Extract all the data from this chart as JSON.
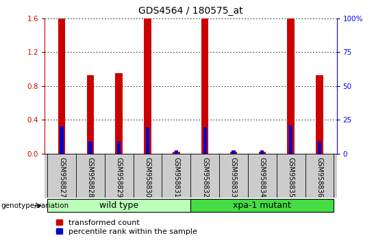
{
  "title": "GDS4564 / 180575_at",
  "samples": [
    "GSM958827",
    "GSM958828",
    "GSM958829",
    "GSM958830",
    "GSM958831",
    "GSM958832",
    "GSM958833",
    "GSM958834",
    "GSM958835",
    "GSM958836"
  ],
  "transformed_count": [
    1.6,
    0.93,
    0.95,
    1.6,
    0.02,
    1.6,
    0.02,
    0.02,
    1.6,
    0.93
  ],
  "percentile_rank_left": [
    0.32,
    0.14,
    0.14,
    0.31,
    0.04,
    0.31,
    0.04,
    0.04,
    0.34,
    0.14
  ],
  "groups": [
    {
      "label": "wild type",
      "start": 0,
      "end": 5,
      "color": "#bbffbb"
    },
    {
      "label": "xpa-1 mutant",
      "start": 5,
      "end": 10,
      "color": "#44dd44"
    }
  ],
  "ylim_left": [
    0,
    1.6
  ],
  "ylim_right": [
    0,
    100
  ],
  "yticks_left": [
    0,
    0.4,
    0.8,
    1.2,
    1.6
  ],
  "yticks_right": [
    0,
    25,
    50,
    75,
    100
  ],
  "bar_color_red": "#cc0000",
  "bar_color_blue": "#0000cc",
  "red_bar_width": 0.25,
  "blue_bar_width": 0.25,
  "grid_color": "black",
  "bg_color": "#ffffff",
  "legend_red": "transformed count",
  "legend_blue": "percentile rank within the sample",
  "genotype_label": "genotype/variation",
  "title_fontsize": 10,
  "tick_fontsize": 7.5,
  "label_fontsize": 9,
  "sample_fontsize": 7
}
